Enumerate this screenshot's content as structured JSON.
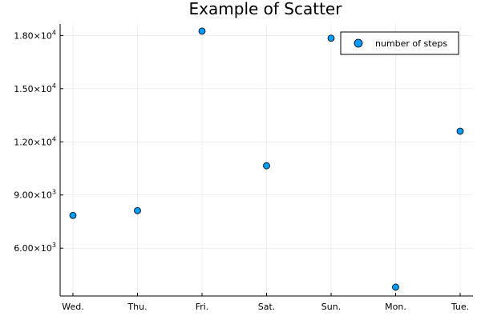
{
  "chart_data": {
    "type": "scatter",
    "title": "Example of Scatter",
    "xlabel": "",
    "ylabel": "",
    "categories": [
      "Wed.",
      "Thu.",
      "Fri.",
      "Sat.",
      "Sun.",
      "Mon.",
      "Tue."
    ],
    "series": [
      {
        "name": "number of steps",
        "color": "#009AF9",
        "values": [
          7850,
          8120,
          18250,
          10650,
          17850,
          3800,
          12600
        ]
      }
    ],
    "ylim": [
      3300,
      18650
    ],
    "yticks": [
      {
        "value": 6000,
        "mantissa": "6.00",
        "exponent": "3"
      },
      {
        "value": 9000,
        "mantissa": "9.00",
        "exponent": "3"
      },
      {
        "value": 12000,
        "mantissa": "1.20",
        "exponent": "4"
      },
      {
        "value": 15000,
        "mantissa": "1.50",
        "exponent": "4"
      },
      {
        "value": 18000,
        "mantissa": "1.80",
        "exponent": "4"
      }
    ],
    "grid": true,
    "legend_position": "top-right"
  }
}
